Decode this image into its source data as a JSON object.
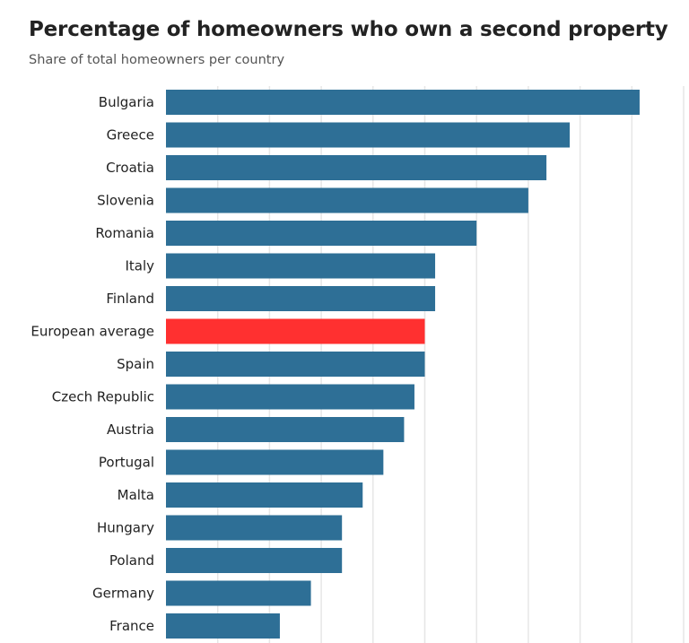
{
  "chart_data": {
    "type": "bar",
    "orientation": "horizontal",
    "title": "Percentage of homeowners who own a second property",
    "subtitle": "Share of total homeowners per country",
    "categories": [
      "Bulgaria",
      "Greece",
      "Croatia",
      "Slovenia",
      "Romania",
      "Italy",
      "Finland",
      "European average",
      "Spain",
      "Czech Republic",
      "Austria",
      "Portugal",
      "Malta",
      "Hungary",
      "Poland",
      "Germany",
      "France"
    ],
    "values": [
      18.3,
      15.6,
      14.7,
      14.0,
      12.0,
      10.4,
      10.4,
      10.0,
      10.0,
      9.6,
      9.2,
      8.4,
      7.6,
      6.8,
      6.8,
      5.6,
      4.4
    ],
    "xlim": [
      0,
      20
    ],
    "grid": true,
    "gridlines": [
      2,
      4,
      6,
      8,
      10,
      12,
      14,
      16,
      18,
      20
    ],
    "colors": {
      "default": "#2e6f96",
      "highlight": "#ff3030"
    },
    "highlight": "European average"
  }
}
